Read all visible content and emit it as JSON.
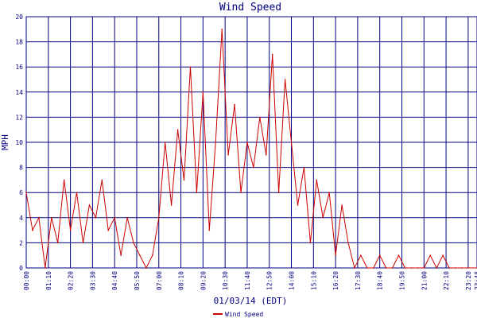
{
  "chart_data": {
    "type": "line",
    "title": "Wind Speed",
    "xlabel": "01/03/14 (EDT)",
    "ylabel": "MPH",
    "ylim": [
      0,
      20
    ],
    "yticks": [
      0,
      2,
      4,
      6,
      8,
      10,
      12,
      14,
      16,
      18,
      20
    ],
    "xticks": [
      "00:00",
      "01:10",
      "02:20",
      "03:30",
      "04:40",
      "05:50",
      "07:00",
      "08:10",
      "09:20",
      "10:30",
      "11:40",
      "12:50",
      "14:00",
      "15:10",
      "16:20",
      "17:30",
      "18:40",
      "19:50",
      "21:00",
      "22:10",
      "23:20",
      "23:48"
    ],
    "grid": true,
    "legend": "bottom-center",
    "series": [
      {
        "name": "Wind Speed",
        "color": "#cc0000",
        "x": [
          "00:00",
          "00:20",
          "00:40",
          "01:00",
          "01:20",
          "01:40",
          "02:00",
          "02:20",
          "02:40",
          "03:00",
          "03:20",
          "03:40",
          "04:00",
          "04:20",
          "04:40",
          "05:00",
          "05:20",
          "05:40",
          "06:00",
          "06:20",
          "06:40",
          "07:00",
          "07:20",
          "07:40",
          "08:00",
          "08:20",
          "08:40",
          "09:00",
          "09:20",
          "09:40",
          "10:00",
          "10:20",
          "10:40",
          "11:00",
          "11:20",
          "11:40",
          "12:00",
          "12:20",
          "12:40",
          "13:00",
          "13:20",
          "13:40",
          "14:00",
          "14:20",
          "14:40",
          "15:00",
          "15:20",
          "15:40",
          "16:00",
          "16:20",
          "16:40",
          "17:00",
          "17:20",
          "17:40",
          "18:00",
          "18:20",
          "18:40",
          "19:00",
          "19:20",
          "19:40",
          "20:00",
          "20:20",
          "20:40",
          "21:00",
          "21:20",
          "21:40",
          "22:00",
          "22:20",
          "22:40",
          "23:00",
          "23:20",
          "23:48"
        ],
        "values": [
          6,
          3,
          4,
          0,
          4,
          2,
          7,
          3,
          6,
          2,
          5,
          4,
          7,
          3,
          4,
          1,
          4,
          2,
          1,
          0,
          1,
          4,
          10,
          5,
          11,
          7,
          16,
          6,
          14,
          3,
          10,
          19,
          9,
          13,
          6,
          10,
          8,
          12,
          9,
          17,
          6,
          15,
          10,
          5,
          8,
          2,
          7,
          4,
          6,
          1,
          5,
          2,
          0,
          1,
          0,
          0,
          1,
          0,
          0,
          1,
          0,
          0,
          0,
          0,
          1,
          0,
          1,
          0,
          0,
          0,
          0,
          0
        ]
      }
    ]
  }
}
